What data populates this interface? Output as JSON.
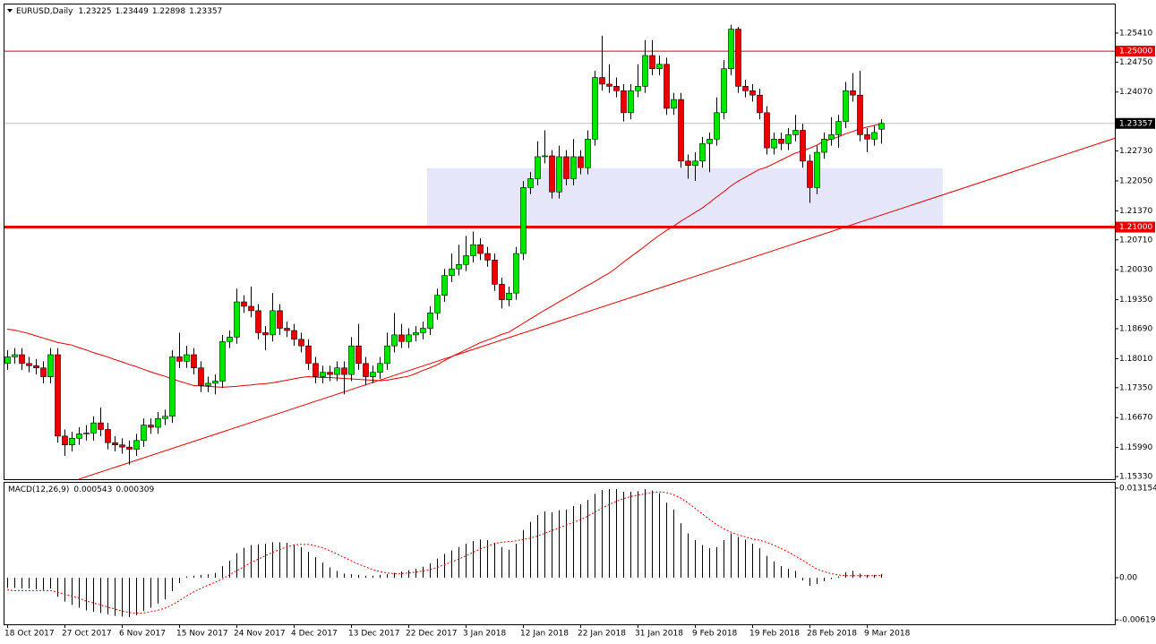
{
  "chart_data": {
    "type": "candlestick",
    "title": "EURUSD,Daily",
    "up_color": "#00e600",
    "down_color": "#e60000",
    "categories": [
      "18 Oct 2017",
      null,
      null,
      null,
      null,
      null,
      null,
      null,
      "27 Oct 2017",
      null,
      null,
      null,
      null,
      null,
      null,
      null,
      "6 Nov 2017",
      null,
      null,
      null,
      null,
      null,
      null,
      null,
      "15 Nov 2017",
      null,
      null,
      null,
      null,
      null,
      null,
      null,
      "24 Nov 2017",
      null,
      null,
      null,
      null,
      null,
      null,
      null,
      "4 Dec 2017",
      null,
      null,
      null,
      null,
      null,
      null,
      null,
      "13 Dec 2017",
      null,
      null,
      null,
      null,
      null,
      null,
      null,
      "22 Dec 2017",
      null,
      null,
      null,
      null,
      null,
      null,
      null,
      "3 Jan 2018",
      null,
      null,
      null,
      null,
      null,
      null,
      null,
      "12 Jan 2018",
      null,
      null,
      null,
      null,
      null,
      null,
      null,
      "22 Jan 2018",
      null,
      null,
      null,
      null,
      null,
      null,
      null,
      "31 Jan 2018",
      null,
      null,
      null,
      null,
      null,
      null,
      null,
      "9 Feb 2018",
      null,
      null,
      null,
      null,
      null,
      null,
      null,
      "19 Feb 2018",
      null,
      null,
      null,
      null,
      null,
      null,
      null,
      "28 Feb 2018",
      null,
      null,
      null,
      null,
      null,
      null,
      null,
      "9 Mar 2018",
      null,
      null
    ],
    "ohlc": [
      [
        1.179,
        1.182,
        1.1775,
        1.1805
      ],
      [
        1.1805,
        1.1825,
        1.179,
        1.181
      ],
      [
        1.181,
        1.1825,
        1.1775,
        1.179
      ],
      [
        1.179,
        1.1805,
        1.177,
        1.1785
      ],
      [
        1.1785,
        1.18,
        1.1765,
        1.178
      ],
      [
        1.178,
        1.1795,
        1.1745,
        1.176
      ],
      [
        1.176,
        1.1825,
        1.1745,
        1.181
      ],
      [
        1.181,
        1.1825,
        1.161,
        1.1625
      ],
      [
        1.1625,
        1.164,
        1.158,
        1.1605
      ],
      [
        1.1605,
        1.1635,
        1.159,
        1.162
      ],
      [
        1.162,
        1.1645,
        1.1605,
        1.163
      ],
      [
        1.163,
        1.165,
        1.1615,
        1.1632
      ],
      [
        1.1632,
        1.167,
        1.1615,
        1.1655
      ],
      [
        1.1655,
        1.169,
        1.1625,
        1.164
      ],
      [
        1.164,
        1.1655,
        1.1595,
        1.161
      ],
      [
        1.161,
        1.1625,
        1.159,
        1.1605
      ],
      [
        1.1605,
        1.162,
        1.1585,
        1.16
      ],
      [
        1.16,
        1.1615,
        1.156,
        1.1595
      ],
      [
        1.1595,
        1.163,
        1.158,
        1.1615
      ],
      [
        1.1615,
        1.1665,
        1.16,
        1.165
      ],
      [
        1.165,
        1.1665,
        1.163,
        1.1645
      ],
      [
        1.1645,
        1.168,
        1.163,
        1.1665
      ],
      [
        1.1665,
        1.1685,
        1.165,
        1.167
      ],
      [
        1.167,
        1.182,
        1.1655,
        1.1805
      ],
      [
        1.1805,
        1.186,
        1.178,
        1.1795
      ],
      [
        1.1795,
        1.183,
        1.178,
        1.181
      ],
      [
        1.181,
        1.1825,
        1.1765,
        1.178
      ],
      [
        1.178,
        1.1795,
        1.1725,
        1.174
      ],
      [
        1.174,
        1.176,
        1.1725,
        1.1745
      ],
      [
        1.1745,
        1.1765,
        1.172,
        1.175
      ],
      [
        1.175,
        1.1855,
        1.1735,
        1.184
      ],
      [
        1.184,
        1.1865,
        1.1825,
        1.185
      ],
      [
        1.185,
        1.196,
        1.1835,
        1.193
      ],
      [
        1.193,
        1.1945,
        1.1905,
        1.192
      ],
      [
        1.192,
        1.1965,
        1.1895,
        1.191
      ],
      [
        1.191,
        1.1925,
        1.1845,
        1.186
      ],
      [
        1.186,
        1.1875,
        1.182,
        1.1855
      ],
      [
        1.1855,
        1.195,
        1.184,
        1.191
      ],
      [
        1.191,
        1.1925,
        1.1855,
        1.187
      ],
      [
        1.187,
        1.1885,
        1.185,
        1.1865
      ],
      [
        1.1865,
        1.188,
        1.183,
        1.1845
      ],
      [
        1.1845,
        1.186,
        1.1815,
        1.183
      ],
      [
        1.183,
        1.1845,
        1.1775,
        1.179
      ],
      [
        1.179,
        1.1805,
        1.1745,
        1.176
      ],
      [
        1.176,
        1.1785,
        1.1745,
        1.177
      ],
      [
        1.177,
        1.1785,
        1.175,
        1.1765
      ],
      [
        1.1765,
        1.1795,
        1.175,
        1.178
      ],
      [
        1.178,
        1.1795,
        1.172,
        1.1765
      ],
      [
        1.1765,
        1.185,
        1.175,
        1.183
      ],
      [
        1.183,
        1.188,
        1.1775,
        1.179
      ],
      [
        1.179,
        1.1805,
        1.174,
        1.176
      ],
      [
        1.176,
        1.1785,
        1.1745,
        1.177
      ],
      [
        1.177,
        1.1805,
        1.1755,
        1.179
      ],
      [
        1.179,
        1.186,
        1.1775,
        1.183
      ],
      [
        1.183,
        1.1905,
        1.1815,
        1.1855
      ],
      [
        1.1855,
        1.188,
        1.1825,
        1.184
      ],
      [
        1.184,
        1.187,
        1.1825,
        1.1855
      ],
      [
        1.1855,
        1.1875,
        1.184,
        1.186
      ],
      [
        1.186,
        1.1885,
        1.1845,
        1.187
      ],
      [
        1.187,
        1.192,
        1.1855,
        1.1905
      ],
      [
        1.1905,
        1.196,
        1.189,
        1.1945
      ],
      [
        1.1945,
        1.2005,
        1.193,
        1.199
      ],
      [
        1.199,
        1.204,
        1.1975,
        1.2005
      ],
      [
        1.2005,
        1.206,
        1.199,
        1.2015
      ],
      [
        1.2015,
        1.208,
        1.2,
        1.2035
      ],
      [
        1.2035,
        1.209,
        1.202,
        1.206
      ],
      [
        1.206,
        1.2075,
        1.2025,
        1.204
      ],
      [
        1.204,
        1.2055,
        1.201,
        1.2025
      ],
      [
        1.2025,
        1.204,
        1.1955,
        1.197
      ],
      [
        1.197,
        1.1985,
        1.1915,
        1.1935
      ],
      [
        1.1935,
        1.1965,
        1.192,
        1.195
      ],
      [
        1.195,
        1.2055,
        1.1935,
        1.204
      ],
      [
        1.204,
        1.2205,
        1.2025,
        1.219
      ],
      [
        1.219,
        1.2225,
        1.2175,
        1.221
      ],
      [
        1.221,
        1.2295,
        1.2195,
        1.226
      ],
      [
        1.226,
        1.232,
        1.2245,
        1.2262
      ],
      [
        1.2262,
        1.2275,
        1.2165,
        1.218
      ],
      [
        1.218,
        1.2285,
        1.2165,
        1.226
      ],
      [
        1.226,
        1.2275,
        1.2195,
        1.221
      ],
      [
        1.221,
        1.23,
        1.2195,
        1.226
      ],
      [
        1.226,
        1.2275,
        1.222,
        1.2235
      ],
      [
        1.2235,
        1.232,
        1.222,
        1.23
      ],
      [
        1.23,
        1.2455,
        1.2285,
        1.244
      ],
      [
        1.244,
        1.2535,
        1.241,
        1.2425
      ],
      [
        1.2425,
        1.247,
        1.2405,
        1.242
      ],
      [
        1.242,
        1.244,
        1.2395,
        1.241
      ],
      [
        1.241,
        1.2425,
        1.234,
        1.236
      ],
      [
        1.236,
        1.2425,
        1.2345,
        1.241
      ],
      [
        1.241,
        1.247,
        1.2395,
        1.242
      ],
      [
        1.242,
        1.2525,
        1.2405,
        1.249
      ],
      [
        1.249,
        1.2525,
        1.2445,
        1.246
      ],
      [
        1.246,
        1.249,
        1.2445,
        1.247
      ],
      [
        1.247,
        1.2485,
        1.2355,
        1.237
      ],
      [
        1.237,
        1.2405,
        1.2355,
        1.239
      ],
      [
        1.239,
        1.2405,
        1.2235,
        1.225
      ],
      [
        1.225,
        1.2265,
        1.221,
        1.224
      ],
      [
        1.224,
        1.227,
        1.2205,
        1.225
      ],
      [
        1.225,
        1.2305,
        1.2235,
        1.229
      ],
      [
        1.229,
        1.2315,
        1.2225,
        1.23
      ],
      [
        1.23,
        1.2395,
        1.2285,
        1.236
      ],
      [
        1.236,
        1.248,
        1.2345,
        1.246
      ],
      [
        1.246,
        1.256,
        1.2445,
        1.255
      ],
      [
        1.255,
        1.2555,
        1.2405,
        1.242
      ],
      [
        1.242,
        1.2435,
        1.2395,
        1.241
      ],
      [
        1.241,
        1.2425,
        1.2385,
        1.24
      ],
      [
        1.24,
        1.2415,
        1.2345,
        1.236
      ],
      [
        1.236,
        1.2375,
        1.2265,
        1.228
      ],
      [
        1.228,
        1.2315,
        1.2265,
        1.23
      ],
      [
        1.23,
        1.2315,
        1.2275,
        1.229
      ],
      [
        1.229,
        1.2325,
        1.2275,
        1.231
      ],
      [
        1.231,
        1.2355,
        1.2295,
        1.232
      ],
      [
        1.232,
        1.2335,
        1.2235,
        1.225
      ],
      [
        1.225,
        1.2265,
        1.2155,
        1.219
      ],
      [
        1.219,
        1.2285,
        1.2175,
        1.227
      ],
      [
        1.227,
        1.2315,
        1.2255,
        1.23
      ],
      [
        1.23,
        1.235,
        1.2285,
        1.231
      ],
      [
        1.231,
        1.2355,
        1.228,
        1.234
      ],
      [
        1.234,
        1.243,
        1.2325,
        1.241
      ],
      [
        1.241,
        1.245,
        1.2385,
        1.24
      ],
      [
        1.24,
        1.2455,
        1.2295,
        1.231
      ],
      [
        1.231,
        1.2325,
        1.227,
        1.23
      ],
      [
        1.23,
        1.233,
        1.2285,
        1.2315
      ],
      [
        1.23225,
        1.23449,
        1.22898,
        1.23357
      ]
    ],
    "ylim": [
      1.1527,
      1.2606
    ],
    "yticks": [
      {
        "value": 1.2541,
        "label": "1.25410"
      },
      {
        "value": 1.2475,
        "label": "1.24750"
      },
      {
        "value": 1.2407,
        "label": "1.24070"
      },
      {
        "value": 1.2273,
        "label": "1.22730"
      },
      {
        "value": 1.2205,
        "label": "1.22050"
      },
      {
        "value": 1.2137,
        "label": "1.21370"
      },
      {
        "value": 1.2071,
        "label": "1.20710"
      },
      {
        "value": 1.2003,
        "label": "1.20030"
      },
      {
        "value": 1.1935,
        "label": "1.19350"
      },
      {
        "value": 1.1869,
        "label": "1.18690"
      },
      {
        "value": 1.1801,
        "label": "1.18010"
      },
      {
        "value": 1.1735,
        "label": "1.17350"
      },
      {
        "value": 1.1667,
        "label": "1.16670"
      },
      {
        "value": 1.1599,
        "label": "1.15990"
      },
      {
        "value": 1.1533,
        "label": "1.15330"
      }
    ],
    "ma": {
      "color": "#e60000",
      "values": [
        1.1868,
        1.1866,
        1.1862,
        1.1858,
        1.1853,
        1.1848,
        1.1843,
        1.1838,
        1.1835,
        1.1832,
        1.1826,
        1.1821,
        1.1815,
        1.181,
        1.1805,
        1.1799,
        1.1794,
        1.1788,
        1.1783,
        1.1777,
        1.1771,
        1.1766,
        1.1761,
        1.1755,
        1.175,
        1.1745,
        1.174,
        1.1739,
        1.1738,
        1.1737,
        1.1736,
        1.1737,
        1.1738,
        1.174,
        1.1741,
        1.1743,
        1.1744,
        1.1746,
        1.1749,
        1.1752,
        1.1755,
        1.1758,
        1.176,
        1.1759,
        1.1758,
        1.1758,
        1.1757,
        1.1756,
        1.1755,
        1.1754,
        1.1753,
        1.1752,
        1.1751,
        1.1752,
        1.1755,
        1.1758,
        1.1761,
        1.1767,
        1.1774,
        1.178,
        1.1787,
        1.1796,
        1.1805,
        1.1813,
        1.1821,
        1.1829,
        1.1837,
        1.1843,
        1.1849,
        1.1856,
        1.1861,
        1.1871,
        1.1881,
        1.1891,
        1.1901,
        1.1911,
        1.192,
        1.193,
        1.1939,
        1.1948,
        1.1958,
        1.1967,
        1.1976,
        1.1986,
        1.1995,
        1.2007,
        1.202,
        1.2032,
        1.2044,
        1.2056,
        1.2069,
        1.2081,
        1.2092,
        1.2102,
        1.2113,
        1.2123,
        1.2133,
        1.2143,
        1.2155,
        1.2168,
        1.218,
        1.2193,
        1.2204,
        1.2213,
        1.2222,
        1.2231,
        1.2236,
        1.2244,
        1.2252,
        1.226,
        1.2268,
        1.2273,
        1.2279,
        1.2286,
        1.2295,
        1.23,
        1.2305,
        1.2312,
        1.2317,
        1.2323,
        1.2327,
        1.2331,
        1.2335
      ]
    },
    "trendline": {
      "color": "#e60000",
      "x": [
        10,
        155
      ],
      "values": [
        1.1527,
        1.2304
      ]
    },
    "levels": [
      {
        "value": 1.25,
        "label": "1.25000",
        "width": 1
      },
      {
        "value": 1.21,
        "label": "1.21000",
        "width": 3
      }
    ],
    "zone": {
      "color": "#e6e6fa",
      "x": [
        58.6,
        130.6
      ],
      "range": [
        1.2101,
        1.2234
      ]
    },
    "macd": {
      "title": "MACD(12,26,9)",
      "ylim": [
        -0.00684,
        0.0138
      ],
      "yticks": [
        0.013154,
        {
          "value": 0,
          "label": "0.00"
        },
        -0.00619
      ],
      "histogram": {
        "color": "#000000",
        "values": [
          -0.0015,
          -0.0015,
          -0.0016,
          -0.0016,
          -0.0017,
          -0.0018,
          -0.0016,
          -0.0028,
          -0.0035,
          -0.004,
          -0.0044,
          -0.0048,
          -0.005,
          -0.0052,
          -0.0054,
          -0.0056,
          -0.0057,
          -0.0058,
          -0.0055,
          -0.0049,
          -0.0044,
          -0.0038,
          -0.0032,
          -0.002,
          -0.0008,
          0.0002,
          0.0003,
          0.0004,
          0.0005,
          0.0007,
          0.0017,
          0.0025,
          0.0036,
          0.0044,
          0.0048,
          0.0049,
          0.005,
          0.0052,
          0.0052,
          0.0051,
          0.0049,
          0.0045,
          0.0038,
          0.003,
          0.0022,
          0.0015,
          0.001,
          0.0006,
          0.0005,
          0.0004,
          0.0003,
          0.0003,
          0.0004,
          0.0005,
          0.0007,
          0.0009,
          0.0011,
          0.0013,
          0.0016,
          0.0021,
          0.0028,
          0.0035,
          0.004,
          0.0045,
          0.005,
          0.0054,
          0.0056,
          0.0055,
          0.0051,
          0.0045,
          0.0041,
          0.005,
          0.007,
          0.0082,
          0.0092,
          0.0097,
          0.0096,
          0.0099,
          0.01,
          0.0105,
          0.0108,
          0.0114,
          0.0123,
          0.0129,
          0.013,
          0.013,
          0.0126,
          0.0126,
          0.0127,
          0.013,
          0.0128,
          0.0124,
          0.011,
          0.01,
          0.008,
          0.0065,
          0.0055,
          0.0048,
          0.0043,
          0.0045,
          0.0055,
          0.0065,
          0.006,
          0.0056,
          0.005,
          0.0043,
          0.0032,
          0.0024,
          0.0017,
          0.0013,
          0.001,
          -0.0004,
          -0.0012,
          -0.0009,
          -0.0005,
          -0.0002,
          0.0002,
          0.0008,
          0.001,
          0.0006,
          0.0004,
          0.0004,
          0.000543
        ]
      },
      "signal": {
        "color": "#e60000",
        "values": [
          -0.0018,
          -0.0019,
          -0.0019,
          -0.0019,
          -0.0019,
          -0.0019,
          -0.0019,
          -0.0021,
          -0.0024,
          -0.0027,
          -0.003,
          -0.0034,
          -0.0037,
          -0.004,
          -0.0043,
          -0.0046,
          -0.0049,
          -0.0051,
          -0.0052,
          -0.0052,
          -0.005,
          -0.0048,
          -0.0045,
          -0.004,
          -0.0034,
          -0.0027,
          -0.0021,
          -0.0016,
          -0.0011,
          -0.0007,
          -0.0002,
          0.0004,
          0.001,
          0.0016,
          0.0022,
          0.0027,
          0.0032,
          0.0037,
          0.0041,
          0.0045,
          0.0048,
          0.0049,
          0.0049,
          0.0047,
          0.0044,
          0.004,
          0.0035,
          0.003,
          0.0025,
          0.002,
          0.0016,
          0.0012,
          0.0009,
          0.0007,
          0.0006,
          0.0006,
          0.0007,
          0.0008,
          0.001,
          0.0012,
          0.0015,
          0.0019,
          0.0023,
          0.0027,
          0.0032,
          0.0037,
          0.0042,
          0.0046,
          0.005,
          0.0052,
          0.0053,
          0.0054,
          0.0056,
          0.0058,
          0.0061,
          0.0065,
          0.0069,
          0.0073,
          0.0077,
          0.0081,
          0.0085,
          0.009,
          0.0096,
          0.0102,
          0.0107,
          0.0112,
          0.0116,
          0.0119,
          0.0121,
          0.0123,
          0.0125,
          0.0126,
          0.0125,
          0.0122,
          0.0117,
          0.011,
          0.0102,
          0.0094,
          0.0086,
          0.0078,
          0.0072,
          0.0067,
          0.0063,
          0.006,
          0.0057,
          0.0055,
          0.0052,
          0.0048,
          0.0043,
          0.0038,
          0.0032,
          0.0026,
          0.0019,
          0.0013,
          0.0009,
          0.0006,
          0.0004,
          0.0003,
          0.0003,
          0.0003,
          0.0003,
          0.0003,
          0.000309
        ]
      }
    }
  }
}
